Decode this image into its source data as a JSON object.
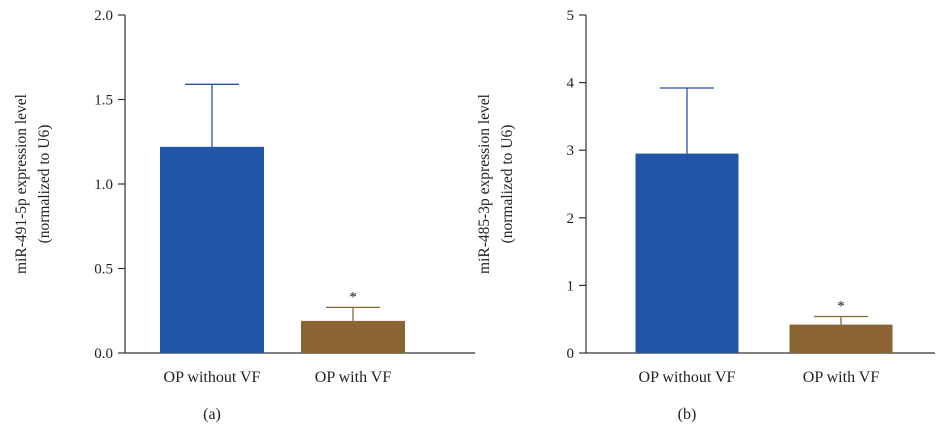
{
  "chart_data": [
    {
      "type": "bar",
      "panel_label": "(a)",
      "categories": [
        "OP without VF",
        "OP with VF"
      ],
      "values": [
        1.22,
        0.19
      ],
      "errors": [
        0.37,
        0.08
      ],
      "significance": [
        "",
        "*"
      ],
      "ylabel_lines": [
        "miR-491-5p expression level",
        "(normalized to U6)"
      ],
      "ylim": [
        0,
        2.0
      ],
      "yticks": [
        "0.0",
        "0.5",
        "1.0",
        "1.5",
        "2.0"
      ],
      "colors": [
        "#2255a8",
        "#8b6433"
      ],
      "grid": false
    },
    {
      "type": "bar",
      "panel_label": "(b)",
      "categories": [
        "OP without VF",
        "OP with VF"
      ],
      "values": [
        2.95,
        0.42
      ],
      "errors": [
        0.97,
        0.12
      ],
      "significance": [
        "",
        "*"
      ],
      "ylabel_lines": [
        "miR-485-3p expression level",
        "(normalized to U6)"
      ],
      "ylim": [
        0,
        5
      ],
      "yticks": [
        "0",
        "1",
        "2",
        "3",
        "4",
        "5"
      ],
      "colors": [
        "#2255a8",
        "#8b6433"
      ],
      "grid": false
    }
  ]
}
